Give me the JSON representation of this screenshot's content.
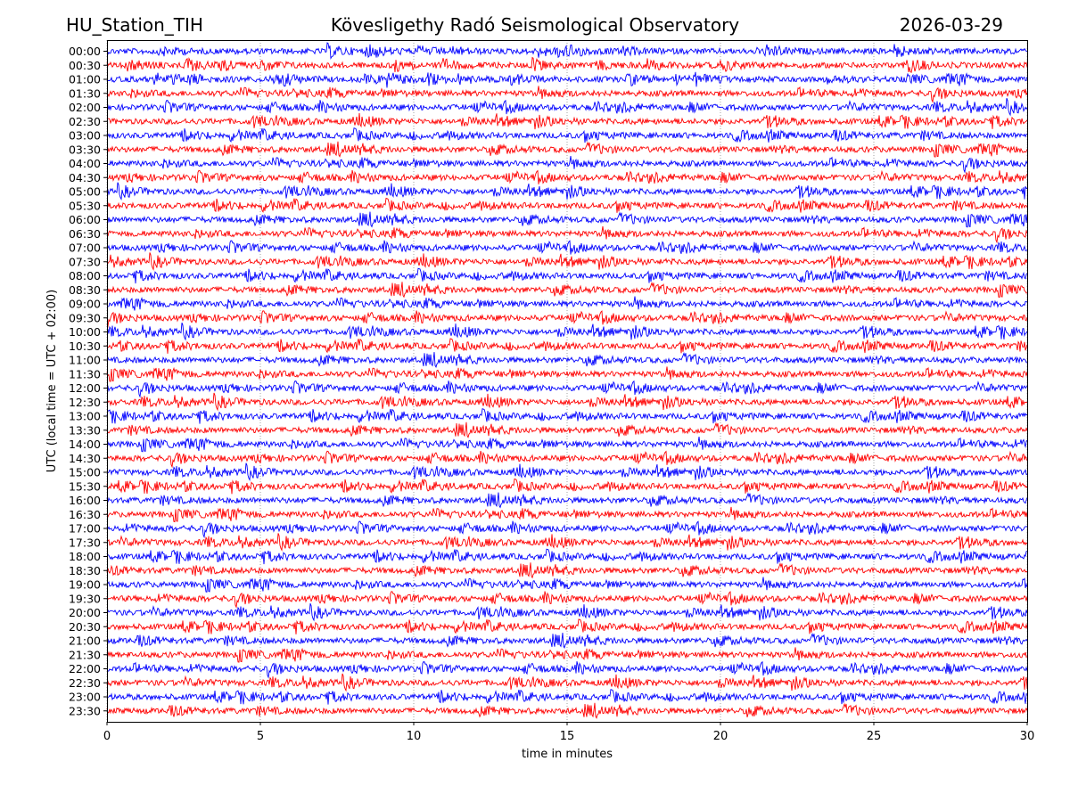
{
  "header": {
    "station": "HU_Station_TIH",
    "observatory": "Kövesligethy Radó Seismological Observatory",
    "date": "2026-03-29"
  },
  "chart_data": {
    "type": "line",
    "title": "Kövesligethy Radó Seismological Observatory",
    "xlabel": "time in minutes",
    "ylabel": "UTC (local time = UTC + 02:00)",
    "xlim": [
      0,
      30
    ],
    "xticks": [
      0,
      5,
      10,
      15,
      20,
      25,
      30
    ],
    "grid": "dotted vertical at x ticks",
    "row_labels": [
      "00:00",
      "00:30",
      "01:00",
      "01:30",
      "02:00",
      "02:30",
      "03:00",
      "03:30",
      "04:00",
      "04:30",
      "05:00",
      "05:30",
      "06:00",
      "06:30",
      "07:00",
      "07:30",
      "08:00",
      "08:30",
      "09:00",
      "09:30",
      "10:00",
      "10:30",
      "11:00",
      "11:30",
      "12:00",
      "12:30",
      "13:00",
      "13:30",
      "14:00",
      "14:30",
      "15:00",
      "15:30",
      "16:00",
      "16:30",
      "17:00",
      "17:30",
      "18:00",
      "18:30",
      "19:00",
      "19:30",
      "20:00",
      "20:30",
      "21:00",
      "21:30",
      "22:00",
      "22:30",
      "23:00",
      "23:30"
    ],
    "row_colors": [
      "#0000ff",
      "#ff0000"
    ]
  }
}
